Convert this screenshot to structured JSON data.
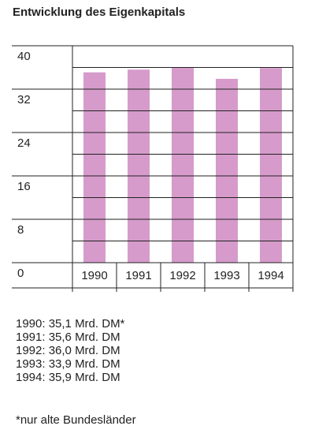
{
  "chart_data": {
    "type": "bar",
    "title": "Entwicklung des Eigenkapitals",
    "categories": [
      "1990",
      "1991",
      "1992",
      "1993",
      "1994"
    ],
    "values": [
      35.1,
      35.6,
      36.0,
      33.9,
      35.9
    ],
    "color": "#d69bcb",
    "ylim": [
      0,
      40
    ],
    "yticks": [
      0,
      8,
      16,
      24,
      32,
      40
    ],
    "yminor_ticks": [
      4,
      12,
      20,
      28,
      36
    ],
    "grid": true,
    "notes": [
      "1990: 35,1 Mrd. DM*",
      "1991: 35,6 Mrd. DM",
      "1992: 36,0 Mrd. DM",
      "1993: 33,9 Mrd. DM",
      "1994: 35,9 Mrd. DM"
    ],
    "footnote": "*nur alte Bundesländer"
  }
}
